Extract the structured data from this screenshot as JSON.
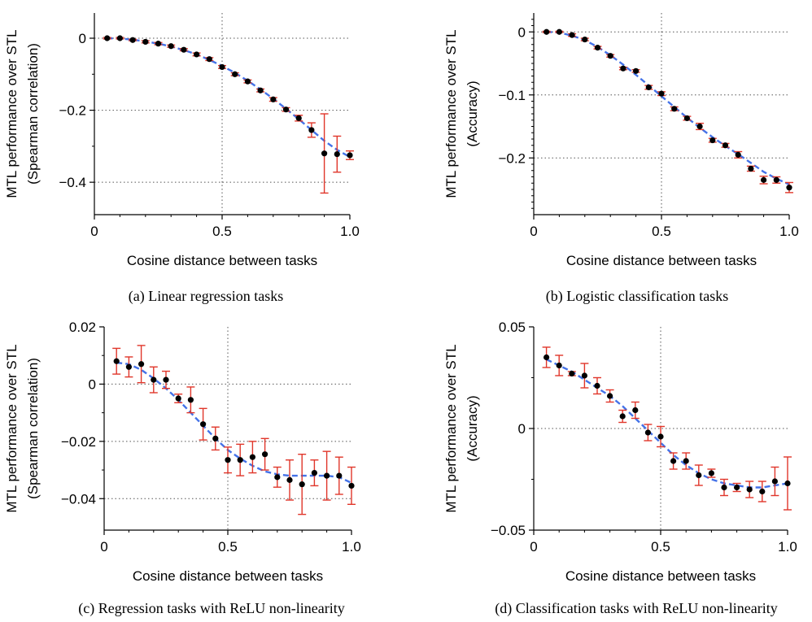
{
  "chart_data": [
    {
      "type": "scatter",
      "caption": "(a) Linear regression tasks",
      "xlabel": "Cosine distance between tasks",
      "ylabel": [
        "MTL performance over STL",
        "(Spearman correlation)"
      ],
      "xlim": [
        0,
        1.0
      ],
      "ylim": [
        -0.49,
        0.07
      ],
      "xticks": [
        0,
        0.5,
        1.0
      ],
      "xtick_labels": [
        "0",
        "0.5",
        "1.0"
      ],
      "yticks": [
        0,
        -0.2,
        -0.4
      ],
      "ytick_labels": [
        "0",
        "−0.2",
        "−0.4"
      ],
      "ytick_minor": [
        -0.1,
        -0.3
      ],
      "grid": "dotted lines at x=0.5 and y=-0.2",
      "series": [
        {
          "kind": "points_with_error_bars",
          "x": [
            0.05,
            0.1,
            0.15,
            0.2,
            0.25,
            0.3,
            0.35,
            0.4,
            0.45,
            0.5,
            0.55,
            0.6,
            0.65,
            0.7,
            0.75,
            0.8,
            0.85,
            0.9,
            0.95,
            1.0
          ],
          "y": [
            0,
            0,
            -0.005,
            -0.01,
            -0.015,
            -0.022,
            -0.032,
            -0.045,
            -0.058,
            -0.08,
            -0.1,
            -0.12,
            -0.145,
            -0.17,
            -0.198,
            -0.222,
            -0.255,
            -0.32,
            -0.322,
            -0.325
          ],
          "err": [
            0.002,
            0.002,
            0.002,
            0.003,
            0.003,
            0.003,
            0.003,
            0.004,
            0.004,
            0.004,
            0.004,
            0.004,
            0.004,
            0.005,
            0.005,
            0.008,
            0.02,
            0.11,
            0.05,
            0.012
          ]
        },
        {
          "kind": "fit_curve",
          "x": [
            0.05,
            0.1,
            0.15,
            0.2,
            0.25,
            0.3,
            0.35,
            0.4,
            0.45,
            0.5,
            0.55,
            0.6,
            0.65,
            0.7,
            0.75,
            0.8,
            0.85,
            0.9,
            0.95,
            1.0
          ],
          "y": [
            0,
            -0.001,
            -0.004,
            -0.009,
            -0.015,
            -0.023,
            -0.033,
            -0.045,
            -0.06,
            -0.077,
            -0.096,
            -0.118,
            -0.142,
            -0.168,
            -0.196,
            -0.225,
            -0.255,
            -0.285,
            -0.31,
            -0.33
          ]
        }
      ]
    },
    {
      "type": "scatter",
      "caption": "(b) Logistic classification tasks",
      "xlabel": "Cosine distance between tasks",
      "ylabel": [
        "MTL performance over STL",
        "(Accuracy)"
      ],
      "xlim": [
        0,
        1.0
      ],
      "ylim": [
        -0.29,
        0.03
      ],
      "xticks": [
        0,
        0.5,
        1.0
      ],
      "xtick_labels": [
        "0",
        "0.5",
        "1.0"
      ],
      "yticks": [
        0,
        -0.1,
        -0.2
      ],
      "ytick_labels": [
        "0",
        "−0.1",
        "−0.2"
      ],
      "ytick_minor": [
        0.02,
        0.01,
        -0.01,
        -0.02,
        -0.03,
        -0.04,
        -0.05,
        -0.06,
        -0.07,
        -0.08,
        -0.09,
        -0.11,
        -0.12,
        -0.13,
        -0.14,
        -0.15,
        -0.16,
        -0.17,
        -0.18,
        -0.19,
        -0.21,
        -0.22,
        -0.23,
        -0.24,
        -0.25,
        -0.26,
        -0.27,
        -0.28
      ],
      "grid": "dotted lines at x=0.5 and y=-0.1",
      "series": [
        {
          "kind": "points_with_error_bars",
          "x": [
            0.05,
            0.1,
            0.15,
            0.2,
            0.25,
            0.3,
            0.35,
            0.4,
            0.45,
            0.5,
            0.55,
            0.6,
            0.65,
            0.7,
            0.75,
            0.8,
            0.85,
            0.9,
            0.95,
            1.0
          ],
          "y": [
            0,
            0,
            -0.005,
            -0.012,
            -0.025,
            -0.038,
            -0.058,
            -0.062,
            -0.088,
            -0.098,
            -0.122,
            -0.137,
            -0.15,
            -0.172,
            -0.18,
            -0.195,
            -0.217,
            -0.235,
            -0.235,
            -0.247
          ],
          "err": [
            0.001,
            0.001,
            0.002,
            0.002,
            0.002,
            0.002,
            0.002,
            0.002,
            0.003,
            0.003,
            0.003,
            0.003,
            0.005,
            0.003,
            0.003,
            0.005,
            0.004,
            0.006,
            0.005,
            0.008
          ]
        },
        {
          "kind": "fit_curve",
          "x": [
            0.05,
            0.1,
            0.15,
            0.2,
            0.25,
            0.3,
            0.35,
            0.4,
            0.45,
            0.5,
            0.55,
            0.6,
            0.65,
            0.7,
            0.75,
            0.8,
            0.85,
            0.9,
            0.95,
            1.0
          ],
          "y": [
            0,
            -0.001,
            -0.006,
            -0.013,
            -0.024,
            -0.037,
            -0.052,
            -0.068,
            -0.085,
            -0.102,
            -0.119,
            -0.136,
            -0.152,
            -0.167,
            -0.181,
            -0.194,
            -0.208,
            -0.222,
            -0.233,
            -0.242
          ]
        }
      ]
    },
    {
      "type": "scatter",
      "caption": "(c) Regression tasks with ReLU non-linearity",
      "xlabel": "Cosine distance between tasks",
      "ylabel": [
        "MTL performance over STL",
        "(Spearman correlation)"
      ],
      "xlim": [
        0,
        1.0
      ],
      "ylim": [
        -0.051,
        0.02
      ],
      "xticks": [
        0,
        0.5,
        1.0
      ],
      "xtick_labels": [
        "0",
        "0.5",
        "1.0"
      ],
      "yticks": [
        0.02,
        0,
        -0.02,
        -0.04
      ],
      "ytick_labels": [
        "0.02",
        "0",
        "−0.02",
        "−0.04"
      ],
      "ytick_minor": [
        0.01,
        -0.01,
        -0.03
      ],
      "grid": "dotted lines at x=0.5 and y=0, -0.02, -0.04",
      "series": [
        {
          "kind": "points_with_error_bars",
          "x": [
            0.05,
            0.1,
            0.15,
            0.2,
            0.25,
            0.3,
            0.35,
            0.4,
            0.45,
            0.5,
            0.55,
            0.6,
            0.65,
            0.7,
            0.75,
            0.8,
            0.85,
            0.9,
            0.95,
            1.0
          ],
          "y": [
            0.008,
            0.006,
            0.007,
            0.0015,
            0.0015,
            -0.005,
            -0.0055,
            -0.014,
            -0.019,
            -0.0265,
            -0.0265,
            -0.0255,
            -0.0245,
            -0.0325,
            -0.0335,
            -0.035,
            -0.031,
            -0.032,
            -0.032,
            -0.0355
          ],
          "err": [
            0.0045,
            0.0035,
            0.0065,
            0.0045,
            0.003,
            0.0015,
            0.0045,
            0.0055,
            0.004,
            0.0045,
            0.0055,
            0.0055,
            0.0055,
            0.0035,
            0.007,
            0.0105,
            0.0045,
            0.0085,
            0.0065,
            0.0065
          ]
        },
        {
          "kind": "fit_curve",
          "x": [
            0.05,
            0.1,
            0.15,
            0.2,
            0.25,
            0.3,
            0.35,
            0.4,
            0.45,
            0.5,
            0.55,
            0.6,
            0.65,
            0.7,
            0.75,
            0.8,
            0.85,
            0.9,
            0.95,
            1.0
          ],
          "y": [
            0.0075,
            0.007,
            0.005,
            0.002,
            -0.0015,
            -0.0055,
            -0.01,
            -0.0145,
            -0.019,
            -0.023,
            -0.026,
            -0.0285,
            -0.0305,
            -0.0315,
            -0.032,
            -0.032,
            -0.032,
            -0.032,
            -0.0325,
            -0.0345
          ]
        }
      ]
    },
    {
      "type": "scatter",
      "caption": "(d) Classification tasks with ReLU non-linearity",
      "xlabel": "Cosine distance between tasks",
      "ylabel": [
        "MTL performance over STL",
        "(Accuracy)"
      ],
      "xlim": [
        0,
        1.0
      ],
      "ylim": [
        -0.05,
        0.05
      ],
      "xticks": [
        0,
        0.5,
        1.0
      ],
      "xtick_labels": [
        "0",
        "0.5",
        "1.0"
      ],
      "yticks": [
        0.05,
        0,
        -0.05
      ],
      "ytick_labels": [
        "0.05",
        "0",
        "−0.05"
      ],
      "ytick_minor": [
        0.025,
        -0.025
      ],
      "grid": "dotted lines at x=0.5 and y=0",
      "series": [
        {
          "kind": "points_with_error_bars",
          "x": [
            0.05,
            0.1,
            0.15,
            0.2,
            0.25,
            0.3,
            0.35,
            0.4,
            0.45,
            0.5,
            0.55,
            0.6,
            0.65,
            0.7,
            0.75,
            0.8,
            0.85,
            0.9,
            0.95,
            1.0
          ],
          "y": [
            0.035,
            0.031,
            0.027,
            0.026,
            0.021,
            0.016,
            0.006,
            0.009,
            -0.002,
            -0.004,
            -0.016,
            -0.016,
            -0.023,
            -0.022,
            -0.029,
            -0.029,
            -0.03,
            -0.031,
            -0.026,
            -0.027
          ],
          "err": [
            0.005,
            0.005,
            0.001,
            0.006,
            0.004,
            0.003,
            0.003,
            0.004,
            0.004,
            0.005,
            0.004,
            0.004,
            0.005,
            0.002,
            0.004,
            0.002,
            0.004,
            0.005,
            0.007,
            0.013
          ]
        },
        {
          "kind": "fit_curve",
          "x": [
            0.05,
            0.1,
            0.15,
            0.2,
            0.25,
            0.3,
            0.35,
            0.4,
            0.45,
            0.5,
            0.55,
            0.6,
            0.65,
            0.7,
            0.75,
            0.8,
            0.85,
            0.9,
            0.95,
            1.0
          ],
          "y": [
            0.034,
            0.031,
            0.028,
            0.024,
            0.02,
            0.016,
            0.011,
            0.005,
            -0.001,
            -0.007,
            -0.013,
            -0.018,
            -0.022,
            -0.025,
            -0.027,
            -0.028,
            -0.029,
            -0.029,
            -0.028,
            -0.027
          ]
        }
      ]
    }
  ],
  "colors": {
    "points": "#000000",
    "error_bars": "#e0362a",
    "fit_curve": "#4472e8",
    "grid": "#555555",
    "axis": "#000000"
  }
}
